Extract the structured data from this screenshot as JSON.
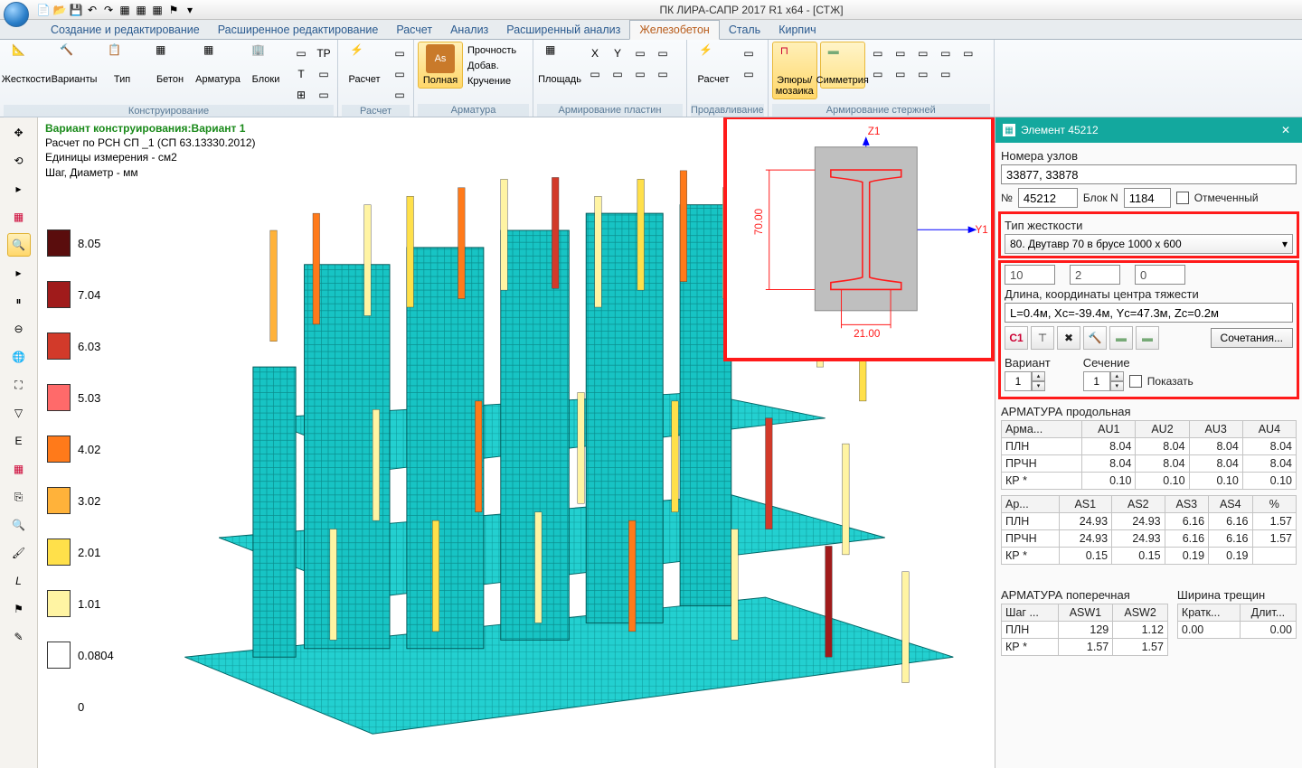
{
  "app_title": "ПК ЛИРА-САПР  2017 R1 x64 - [СТЖ]",
  "menu_tabs": [
    "Создание и редактирование",
    "Расширенное редактирование",
    "Расчет",
    "Анализ",
    "Расширенный анализ",
    "Железобетон",
    "Сталь",
    "Кирпич"
  ],
  "active_tab": "Железобетон",
  "ribbon": {
    "g1": {
      "label": "Конструирование",
      "items": [
        "Жесткости",
        "Варианты",
        "Тип",
        "Бетон",
        "Арматура",
        "Блоки"
      ]
    },
    "g2": {
      "label": "Расчет",
      "item": "Расчет"
    },
    "g3": {
      "label": "Арматура",
      "full": "Полная",
      "lines": [
        "Прочность",
        "Добав.",
        "Кручение"
      ]
    },
    "g4": {
      "label": "Армирование пластин",
      "item": "Площадь"
    },
    "g5": {
      "label": "Продавливание",
      "item": "Расчет"
    },
    "g6": {
      "label": "Армирование стержней",
      "a": "Эпюры/\nмозаика",
      "b": "Симметрия"
    }
  },
  "viewport_info": {
    "l1": "Вариант конструирования:Вариант 1",
    "l2": "Расчет по РСН  СП _1 (СП 63.13330.2012)",
    "l3": "Единицы измерения - см2",
    "l4": "Шаг, Диаметр - мм"
  },
  "legend": [
    {
      "v": "8.05",
      "c": "#5a0d0d"
    },
    {
      "v": "7.04",
      "c": "#a01b1b"
    },
    {
      "v": "6.03",
      "c": "#d23a2a"
    },
    {
      "v": "5.03",
      "c": "#ff6a6a"
    },
    {
      "v": "4.02",
      "c": "#ff7a1a"
    },
    {
      "v": "3.02",
      "c": "#ffb23a"
    },
    {
      "v": "2.01",
      "c": "#ffe04a"
    },
    {
      "v": "1.01",
      "c": "#fff4a3"
    },
    {
      "v": "0.0804",
      "c": "#ffffff"
    },
    {
      "v": "0",
      "c": ""
    }
  ],
  "inset": {
    "z": "Z1",
    "y": "Y1",
    "h": "70.00",
    "w": "21.00"
  },
  "panel": {
    "title": "Элемент 45212",
    "nodes_label": "Номера узлов",
    "nodes_value": "33877, 33878",
    "n_label": "№",
    "n_value": "45212",
    "block_label": "Блок N",
    "block_value": "1184",
    "marked_label": "Отмеченный",
    "stiff_label": "Тип жесткости",
    "stiff_value": "80. Двутавр 70 в брусе 1000 x 600",
    "three": [
      {
        "v": "10"
      },
      {
        "v": "2"
      },
      {
        "v": "0"
      }
    ],
    "len_label": "Длина, координаты центра тяжести",
    "len_value": "L=0.4м, Xc=-39.4м, Yc=47.3м, Zc=0.2м",
    "combo_btn": "Сочетания...",
    "variant_label": "Вариант",
    "variant_v": "1",
    "section_label": "Сечение",
    "section_v": "1",
    "show_label": "Показать",
    "long_h": "АРМАТУРА продольная",
    "t1": {
      "head": [
        "Арма...",
        "AU1",
        "AU2",
        "AU3",
        "AU4"
      ],
      "rows": [
        [
          "ПЛН",
          "8.04",
          "8.04",
          "8.04",
          "8.04"
        ],
        [
          "ПРЧН",
          "8.04",
          "8.04",
          "8.04",
          "8.04"
        ],
        [
          "КР *",
          "0.10",
          "0.10",
          "0.10",
          "0.10"
        ]
      ]
    },
    "t2": {
      "head": [
        "Ар...",
        "AS1",
        "AS2",
        "AS3",
        "AS4",
        "%"
      ],
      "rows": [
        [
          "ПЛН",
          "24.93",
          "24.93",
          "6.16",
          "6.16",
          "1.57"
        ],
        [
          "ПРЧН",
          "24.93",
          "24.93",
          "6.16",
          "6.16",
          "1.57"
        ],
        [
          "КР *",
          "0.15",
          "0.15",
          "0.19",
          "0.19",
          ""
        ]
      ]
    },
    "trans_h": "АРМАТУРА поперечная",
    "crack_h": "Ширина трещин",
    "t3": {
      "head": [
        "Шаг ...",
        "ASW1",
        "ASW2"
      ],
      "rows": [
        [
          "ПЛН",
          "129",
          "1.12"
        ],
        [
          "КР *",
          "1.57",
          "1.57"
        ]
      ]
    },
    "t4": {
      "head": [
        "Кратк...",
        "Длит..."
      ],
      "rows": [
        [
          "0.00",
          "0.00"
        ]
      ]
    }
  },
  "colors": {
    "teal": "#17c4c4",
    "tealD": "#0a8d8d",
    "panel": "#13a89e",
    "red": "#ff1a1a"
  }
}
